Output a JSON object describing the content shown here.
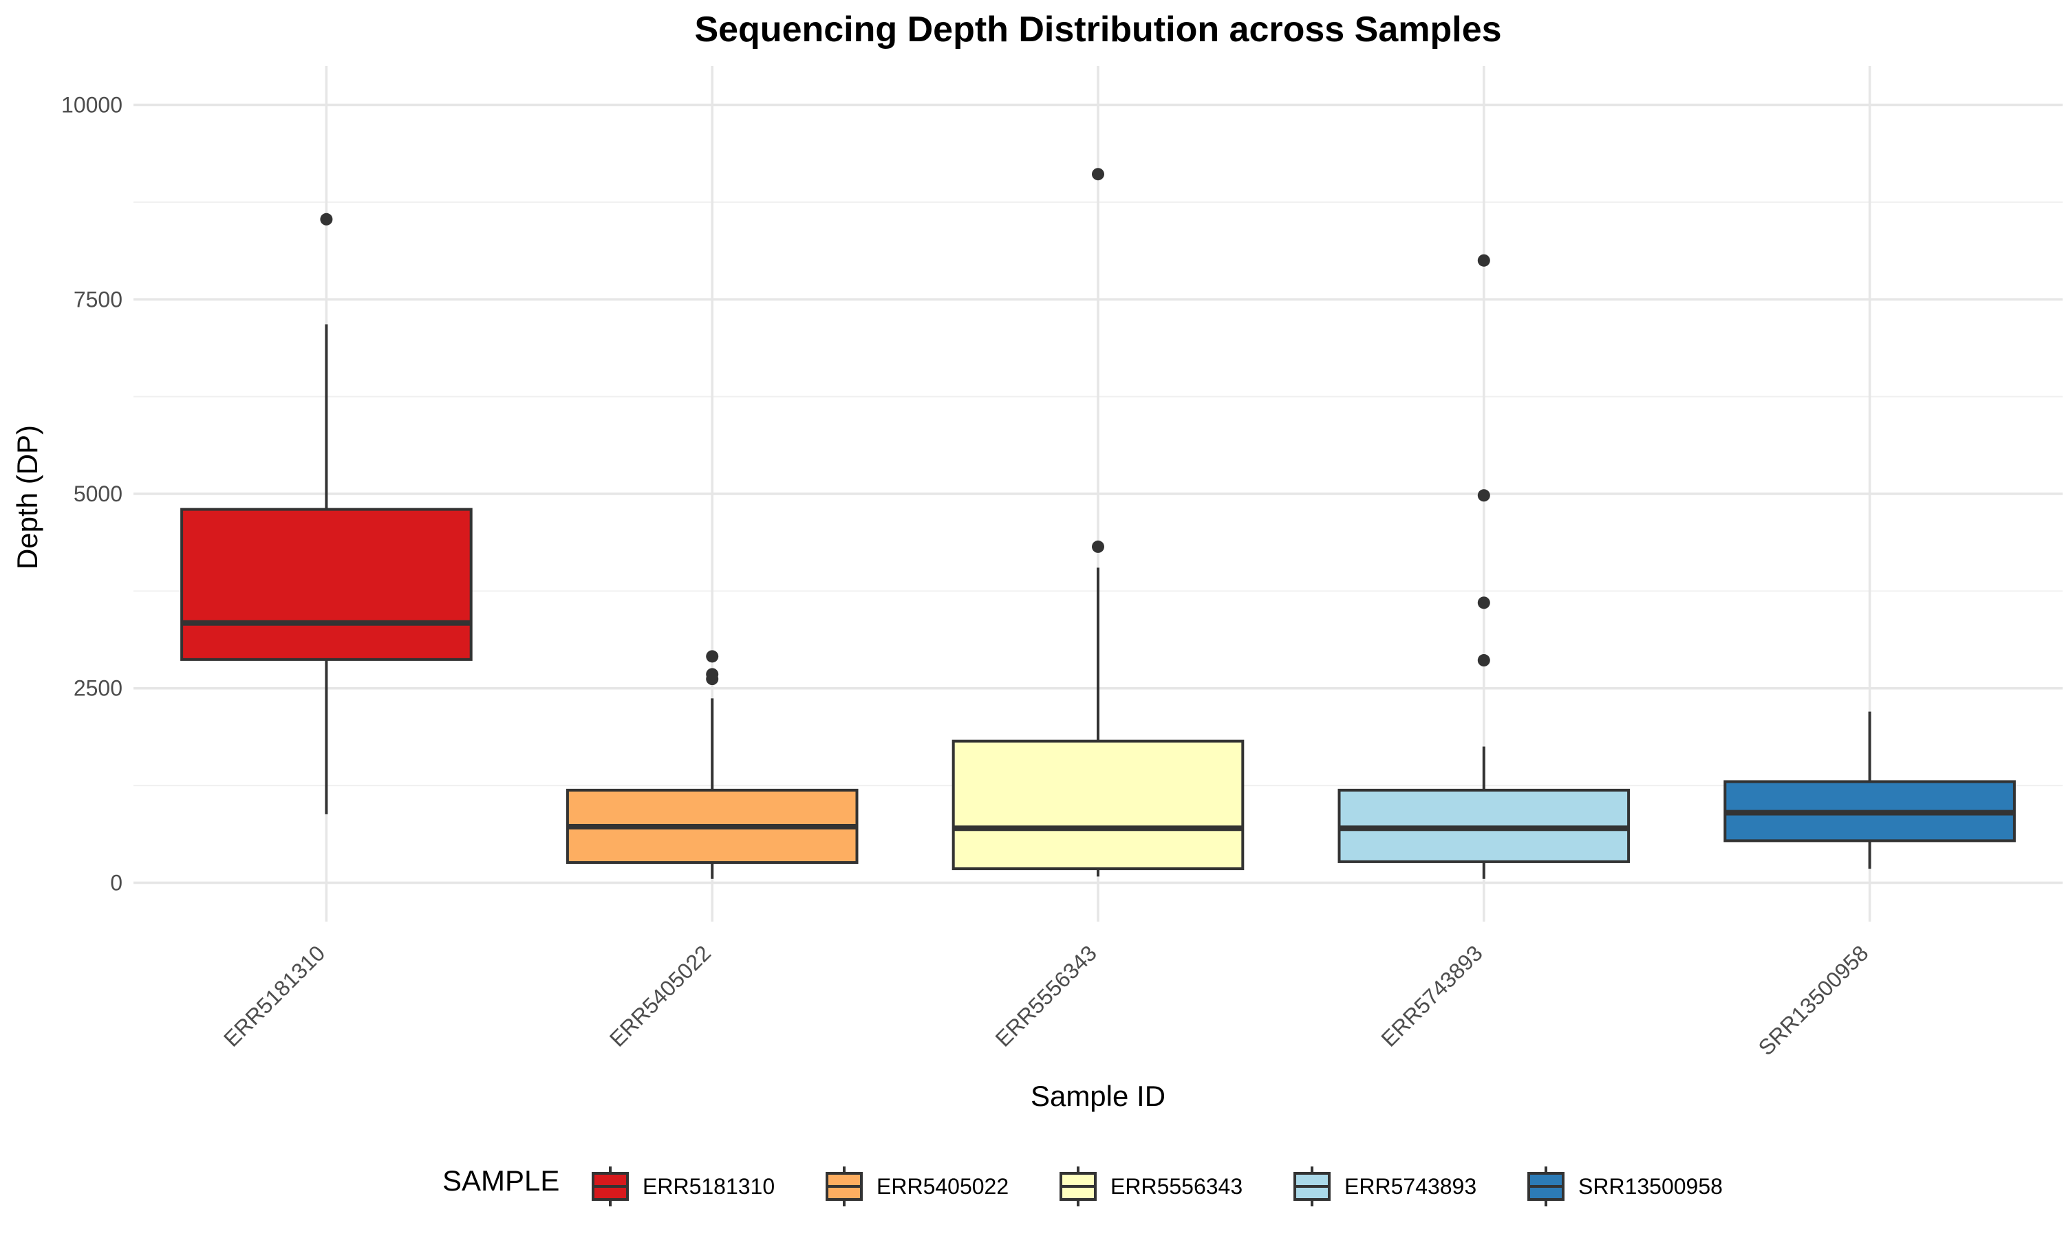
{
  "chart_data": {
    "type": "box",
    "title": "Sequencing Depth Distribution across Samples",
    "xlabel": "Sample ID",
    "ylabel": "Depth (DP)",
    "ylim": [
      -500,
      10500
    ],
    "yticks": [
      0,
      2500,
      5000,
      7500,
      10000
    ],
    "grid": true,
    "legend": {
      "title": "SAMPLE",
      "position": "bottom"
    },
    "categories": [
      "ERR5181310",
      "ERR5405022",
      "ERR5556343",
      "ERR5743893",
      "SRR13500958"
    ],
    "series": [
      {
        "name": "ERR5181310",
        "color": "#D7191C",
        "whisker_low": 880,
        "q1": 2870,
        "median": 3340,
        "q3": 4800,
        "whisker_high": 7180,
        "outliers": [
          8530
        ]
      },
      {
        "name": "ERR5405022",
        "color": "#FDAE61",
        "whisker_low": 50,
        "q1": 260,
        "median": 720,
        "q3": 1190,
        "whisker_high": 2370,
        "outliers": [
          2620,
          2680,
          2910
        ]
      },
      {
        "name": "ERR5556343",
        "color": "#FFFFBF",
        "whisker_low": 80,
        "q1": 180,
        "median": 700,
        "q3": 1820,
        "whisker_high": 4050,
        "outliers": [
          4320,
          9110
        ]
      },
      {
        "name": "ERR5743893",
        "color": "#ABD9E9",
        "whisker_low": 50,
        "q1": 270,
        "median": 700,
        "q3": 1190,
        "whisker_high": 1750,
        "outliers": [
          2860,
          3600,
          4980,
          8000
        ]
      },
      {
        "name": "SRR13500958",
        "color": "#2C7BB6",
        "whisker_low": 180,
        "q1": 540,
        "median": 900,
        "q3": 1300,
        "whisker_high": 2200,
        "outliers": []
      }
    ]
  }
}
